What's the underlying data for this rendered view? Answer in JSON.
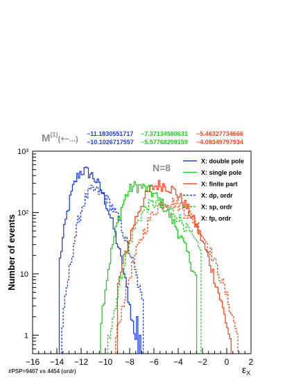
{
  "header": {
    "label_main": "M",
    "label_sup": "(1)",
    "label_tail": "(+−...)",
    "values_row1": [
      "−11.1830551717",
      "−7.37134580631",
      "−5.46327734666"
    ],
    "values_row2": [
      "−10.1026717557",
      "−5.57768298159",
      "−4.08349797934"
    ],
    "value_colors": [
      "#1f3fdc",
      "#22cc22",
      "#f04a20"
    ]
  },
  "footer_note": "#PSP=9407 vs 4454 (ordr)",
  "chart_data": {
    "type": "line",
    "title": "N=8",
    "xlabel": "ε",
    "xlabel_sub": "X",
    "ylabel": "Number of events",
    "xlim": [
      -16,
      2
    ],
    "ylim": [
      0.5,
      1000
    ],
    "yscale": "log",
    "x_ticks": [
      -16,
      -14,
      -12,
      -10,
      -8,
      -6,
      -4,
      -2,
      0,
      2
    ],
    "x_tick_labels": [
      "−16",
      "−14",
      "−12",
      "−10",
      "−8",
      "−6",
      "−4",
      "−2",
      "0",
      "2"
    ],
    "y_ticks": [
      1,
      10,
      100,
      1000
    ],
    "y_tick_labels": [
      "1",
      "10",
      "10²",
      "10³"
    ],
    "legend_position": "top-right",
    "series": [
      {
        "name": "X: double pole",
        "color": "#1f3fdc",
        "dashed": false,
        "peak_x": -11.8,
        "peak_y": 480,
        "sigma_left": 0.75,
        "sigma_right": 1.2,
        "x_min": -13.8,
        "x_max": -7.2
      },
      {
        "name": "X: single pole",
        "color": "#22cc22",
        "dashed": false,
        "peak_x": -7.5,
        "peak_y": 270,
        "sigma_left": 0.9,
        "sigma_right": 1.9,
        "x_min": -10.4,
        "x_max": -2.6
      },
      {
        "name": "X: finite part",
        "color": "#f04a20",
        "dashed": false,
        "peak_x": -5.5,
        "peak_y": 285,
        "sigma_left": 1.25,
        "sigma_right": 1.7,
        "x_min": -9.0,
        "x_max": 0.3
      },
      {
        "name": "X: dp, ordr",
        "color": "#1f3fdc",
        "dashed": true,
        "peak_x": -11.0,
        "peak_y": 230,
        "sigma_left": 0.8,
        "sigma_right": 1.4,
        "x_min": -13.6,
        "x_max": -7.0
      },
      {
        "name": "X: sp, ordr",
        "color": "#22cc22",
        "dashed": true,
        "peak_x": -6.0,
        "peak_y": 140,
        "sigma_left": 1.15,
        "sigma_right": 2.0,
        "x_min": -9.8,
        "x_max": -2.2
      },
      {
        "name": "X: fp, ordr",
        "color": "#f04a20",
        "dashed": true,
        "peak_x": -4.8,
        "peak_y": 150,
        "sigma_left": 1.35,
        "sigma_right": 1.8,
        "x_min": -9.4,
        "x_max": 0.8
      }
    ]
  }
}
